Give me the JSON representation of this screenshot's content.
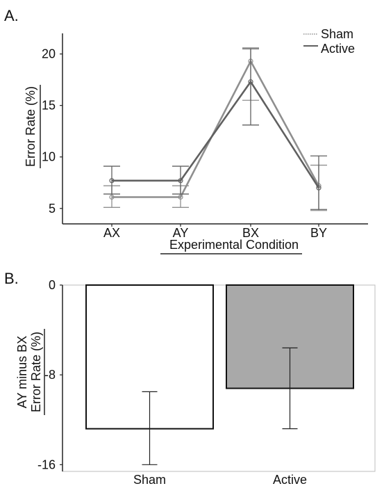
{
  "chart_data": [
    {
      "panel_label": "A.",
      "type": "line",
      "categories": [
        "AX",
        "AY",
        "BX",
        "BY"
      ],
      "xlabel": "Experimental Condition",
      "ylabel": "Error Rate (%)",
      "ylim": [
        3.5,
        22
      ],
      "yticks": [
        "5",
        "10",
        "15",
        "20"
      ],
      "grid": false,
      "legend": "top-right",
      "series": [
        {
          "name": "Sham",
          "color": "#8f8f8f",
          "style": "dotted",
          "values": [
            6.1,
            6.1,
            19.3,
            7.2
          ],
          "err_low": [
            5.1,
            5.1,
            15.5,
            4.8
          ],
          "err_high": [
            7.2,
            7.2,
            20.6,
            9.2
          ]
        },
        {
          "name": "Active",
          "color": "#606060",
          "style": "solid",
          "values": [
            7.7,
            7.7,
            17.3,
            7.0
          ],
          "err_low": [
            6.4,
            6.4,
            13.1,
            4.9
          ],
          "err_high": [
            9.1,
            9.1,
            20.5,
            10.1
          ]
        }
      ]
    },
    {
      "panel_label": "B.",
      "type": "bar",
      "categories": [
        "Sham",
        "Active"
      ],
      "ylabel_lines": [
        "AY minus BX",
        "Error Rate (%)"
      ],
      "ylim": [
        -16.6,
        0
      ],
      "yticks": [
        "0",
        "-8",
        "-16"
      ],
      "values": [
        -12.8,
        -9.2
      ],
      "err_low": [
        -16.0,
        -12.8
      ],
      "err_high": [
        -9.5,
        -5.6
      ],
      "colors": [
        "#ffffff",
        "#a9a9a9"
      ]
    }
  ]
}
